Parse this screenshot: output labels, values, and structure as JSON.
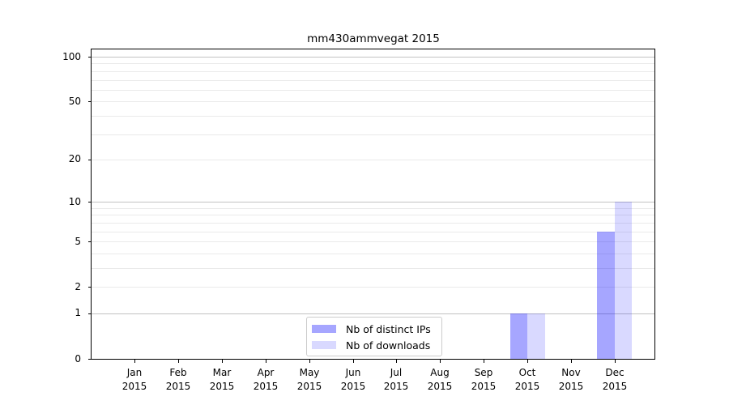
{
  "title": "mm430ammvegat 2015",
  "chart_data": {
    "type": "bar",
    "title": "mm430ammvegat 2015",
    "categories": [
      "Jan 2015",
      "Feb 2015",
      "Mar 2015",
      "Apr 2015",
      "May 2015",
      "Jun 2015",
      "Jul 2015",
      "Aug 2015",
      "Sep 2015",
      "Oct 2015",
      "Nov 2015",
      "Dec 2015"
    ],
    "series": [
      {
        "name": "Nb of distinct IPs",
        "color": "#0000ff",
        "alpha": 0.35,
        "values": [
          0,
          0,
          0,
          0,
          0,
          0,
          0,
          0,
          0,
          1,
          0,
          6
        ]
      },
      {
        "name": "Nb of downloads",
        "color": "#0000ff",
        "alpha": 0.15,
        "values": [
          0,
          0,
          0,
          0,
          0,
          0,
          0,
          0,
          0,
          1,
          0,
          10
        ]
      }
    ],
    "yscale": "log1p",
    "ylim": [
      0,
      112
    ],
    "yticks": [
      0,
      1,
      2,
      5,
      10,
      20,
      50,
      100
    ],
    "ytick_labels": [
      "0",
      "1",
      "2",
      "5",
      "10",
      "20",
      "50",
      "100"
    ],
    "major_gridlines": [
      1,
      10,
      100
    ],
    "minor_gridlines": [
      2,
      3,
      4,
      5,
      6,
      7,
      8,
      9,
      20,
      30,
      40,
      50,
      60,
      70,
      80,
      90
    ],
    "grid": true,
    "legend": {
      "position": "lower center",
      "items": [
        "Nb of distinct IPs",
        "Nb of downloads"
      ]
    },
    "colors": {
      "grid_major": "#c2c2c2",
      "grid_minor": "#eaeaea",
      "spine": "#000000",
      "text": "#000000",
      "bar_distinct_ips_on_white": "#a6a6ff",
      "bar_downloads_on_white": "#d9d9ff"
    }
  }
}
